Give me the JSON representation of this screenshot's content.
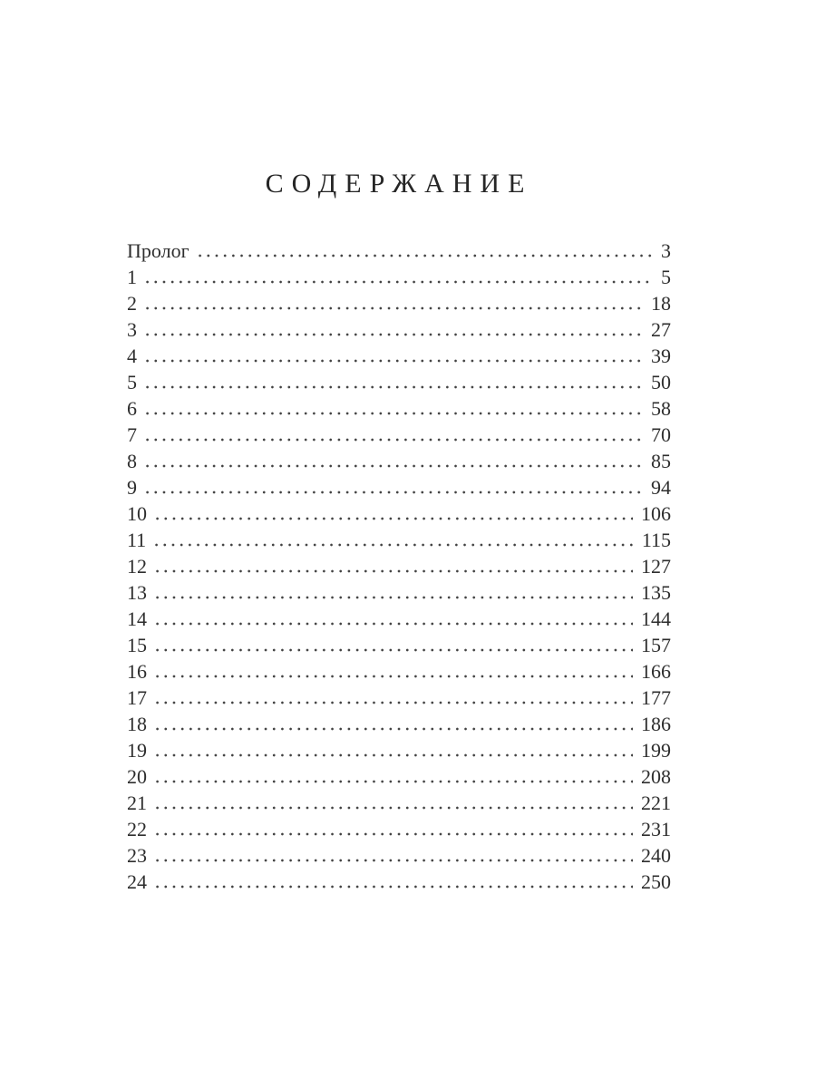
{
  "page": {
    "title": "СОДЕРЖАНИЕ",
    "text_color": "#2e2e2e",
    "background_color": "#ffffff"
  },
  "toc": {
    "entries": [
      {
        "label": "Пролог",
        "page": "3"
      },
      {
        "label": "1",
        "page": "5"
      },
      {
        "label": "2",
        "page": "18"
      },
      {
        "label": "3",
        "page": "27"
      },
      {
        "label": "4",
        "page": "39"
      },
      {
        "label": "5",
        "page": "50"
      },
      {
        "label": "6",
        "page": "58"
      },
      {
        "label": "7",
        "page": "70"
      },
      {
        "label": "8",
        "page": "85"
      },
      {
        "label": "9",
        "page": "94"
      },
      {
        "label": "10",
        "page": "106"
      },
      {
        "label": "11",
        "page": "115"
      },
      {
        "label": "12",
        "page": "127"
      },
      {
        "label": "13",
        "page": "135"
      },
      {
        "label": "14",
        "page": "144"
      },
      {
        "label": "15",
        "page": "157"
      },
      {
        "label": "16",
        "page": "166"
      },
      {
        "label": "17",
        "page": "177"
      },
      {
        "label": "18",
        "page": "186"
      },
      {
        "label": "19",
        "page": "199"
      },
      {
        "label": "20",
        "page": "208"
      },
      {
        "label": "21",
        "page": "221"
      },
      {
        "label": "22",
        "page": "231"
      },
      {
        "label": "23",
        "page": "240"
      },
      {
        "label": "24",
        "page": "250"
      }
    ]
  }
}
